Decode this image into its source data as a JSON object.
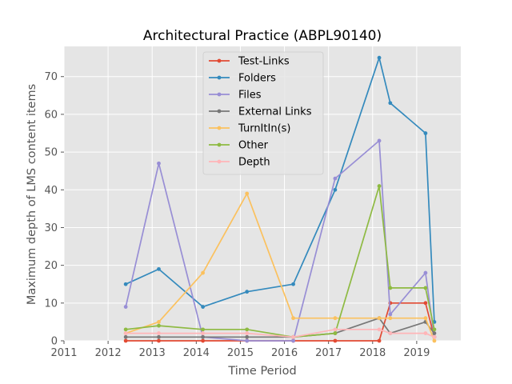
{
  "chart_data": {
    "type": "line",
    "title": "Architectural Practice (ABPL90140)",
    "xlabel": "Time Period",
    "ylabel": "Maximum depth of LMS content items",
    "xlim": [
      2011,
      2020
    ],
    "ylim": [
      0,
      78
    ],
    "x_ticks": [
      2011,
      2012,
      2013,
      2014,
      2015,
      2016,
      2017,
      2018,
      2019
    ],
    "y_ticks": [
      0,
      10,
      20,
      30,
      40,
      50,
      60,
      70
    ],
    "grid": true,
    "legend_position": "top-center",
    "x": [
      2012.4,
      2013.15,
      2014.15,
      2015.15,
      2016.2,
      2017.15,
      2018.15,
      2018.4,
      2019.2,
      2019.4
    ],
    "series": [
      {
        "name": "Test-Links",
        "color": "#E24A33",
        "values": [
          0,
          0,
          0,
          0,
          0,
          0,
          0,
          10,
          10,
          1
        ]
      },
      {
        "name": "Folders",
        "color": "#348ABD",
        "values": [
          15,
          19,
          9,
          13,
          15,
          40,
          75,
          63,
          55,
          5
        ]
      },
      {
        "name": "Files",
        "color": "#988ED5",
        "values": [
          9,
          47,
          1,
          0,
          0,
          43,
          53,
          7,
          18,
          1
        ]
      },
      {
        "name": "External Links",
        "color": "#777777",
        "values": [
          1,
          1,
          1,
          1,
          1,
          2,
          6,
          2,
          5,
          2
        ]
      },
      {
        "name": "TurnItIn(s)",
        "color": "#FBC15E",
        "values": [
          2,
          5,
          18,
          39,
          6,
          6,
          6,
          6,
          6,
          0
        ]
      },
      {
        "name": "Other",
        "color": "#8EBA42",
        "values": [
          3,
          4,
          3,
          3,
          1,
          2,
          41,
          14,
          14,
          3
        ]
      },
      {
        "name": "Depth",
        "color": "#FFB5B8",
        "values": [
          2,
          2,
          2,
          2,
          1,
          3,
          3,
          2,
          2,
          1
        ]
      }
    ]
  },
  "style": {
    "plot_background": "#E5E5E5",
    "grid_color": "#FFFFFF"
  }
}
